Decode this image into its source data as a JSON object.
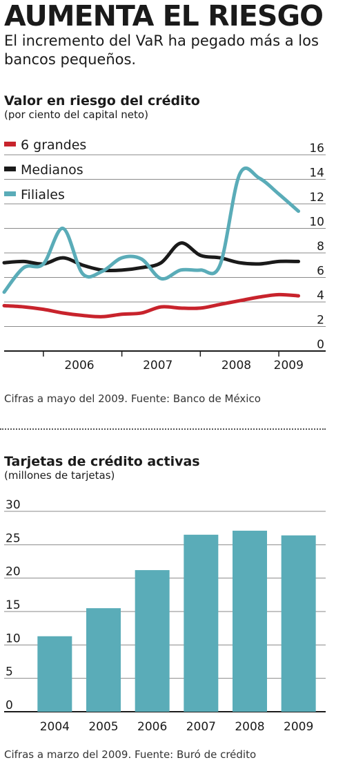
{
  "headline": "AUMENTA EL RIESGO",
  "subheadline": "El incremento del VaR ha pegado más a los  bancos pequeños.",
  "charts": [
    {
      "title": "Valor en riesgo del crédito",
      "subtitle": "(por ciento del capital neto)",
      "source": "Cifras a mayo del 2009. Fuente: Banco de México"
    },
    {
      "title": "Tarjetas de crédito activas",
      "subtitle": "(millones de tarjetas)",
      "source": "Cifras a marzo del 2009. Fuente: Buró de crédito"
    }
  ],
  "chart_data": [
    {
      "type": "line",
      "x_tick_labels": [
        "2006",
        "2007",
        "2008",
        "2009"
      ],
      "x_range": [
        "2005-07",
        "2009-05"
      ],
      "x": [
        "2005-07",
        "2005-10",
        "2006-01",
        "2006-04",
        "2006-07",
        "2006-10",
        "2007-01",
        "2007-04",
        "2007-07",
        "2007-10",
        "2008-01",
        "2008-04",
        "2008-07",
        "2008-10",
        "2009-01",
        "2009-04"
      ],
      "ylim": [
        0,
        16
      ],
      "yticks": [
        0,
        2,
        4,
        6,
        8,
        10,
        12,
        14,
        16
      ],
      "grid": true,
      "legend_position": "top-left",
      "series": [
        {
          "name": "6 grandes",
          "color": "#c8232c",
          "values": [
            3.7,
            3.6,
            3.4,
            3.1,
            2.9,
            2.8,
            3.0,
            3.1,
            3.6,
            3.5,
            3.5,
            3.8,
            4.1,
            4.4,
            4.6,
            4.5
          ]
        },
        {
          "name": "Medianos",
          "color": "#1a1a1a",
          "values": [
            7.2,
            7.3,
            7.1,
            7.6,
            7.0,
            6.6,
            6.6,
            6.8,
            7.2,
            8.8,
            7.8,
            7.6,
            7.2,
            7.1,
            7.3,
            7.3
          ]
        },
        {
          "name": "Filiales",
          "color": "#5aacb8",
          "values": [
            4.8,
            6.8,
            7.1,
            10.0,
            6.3,
            6.5,
            7.6,
            7.5,
            5.9,
            6.6,
            6.6,
            7.0,
            14.4,
            14.1,
            12.8,
            11.4
          ]
        }
      ]
    },
    {
      "type": "bar",
      "categories": [
        "2004",
        "2005",
        "2006",
        "2007",
        "2008",
        "2009"
      ],
      "values": [
        11.3,
        15.5,
        21.2,
        26.5,
        27.1,
        26.4
      ],
      "ylim": [
        0,
        30
      ],
      "yticks": [
        0,
        5,
        10,
        15,
        20,
        25,
        30
      ],
      "grid": true,
      "color": "#5aacb8"
    }
  ]
}
